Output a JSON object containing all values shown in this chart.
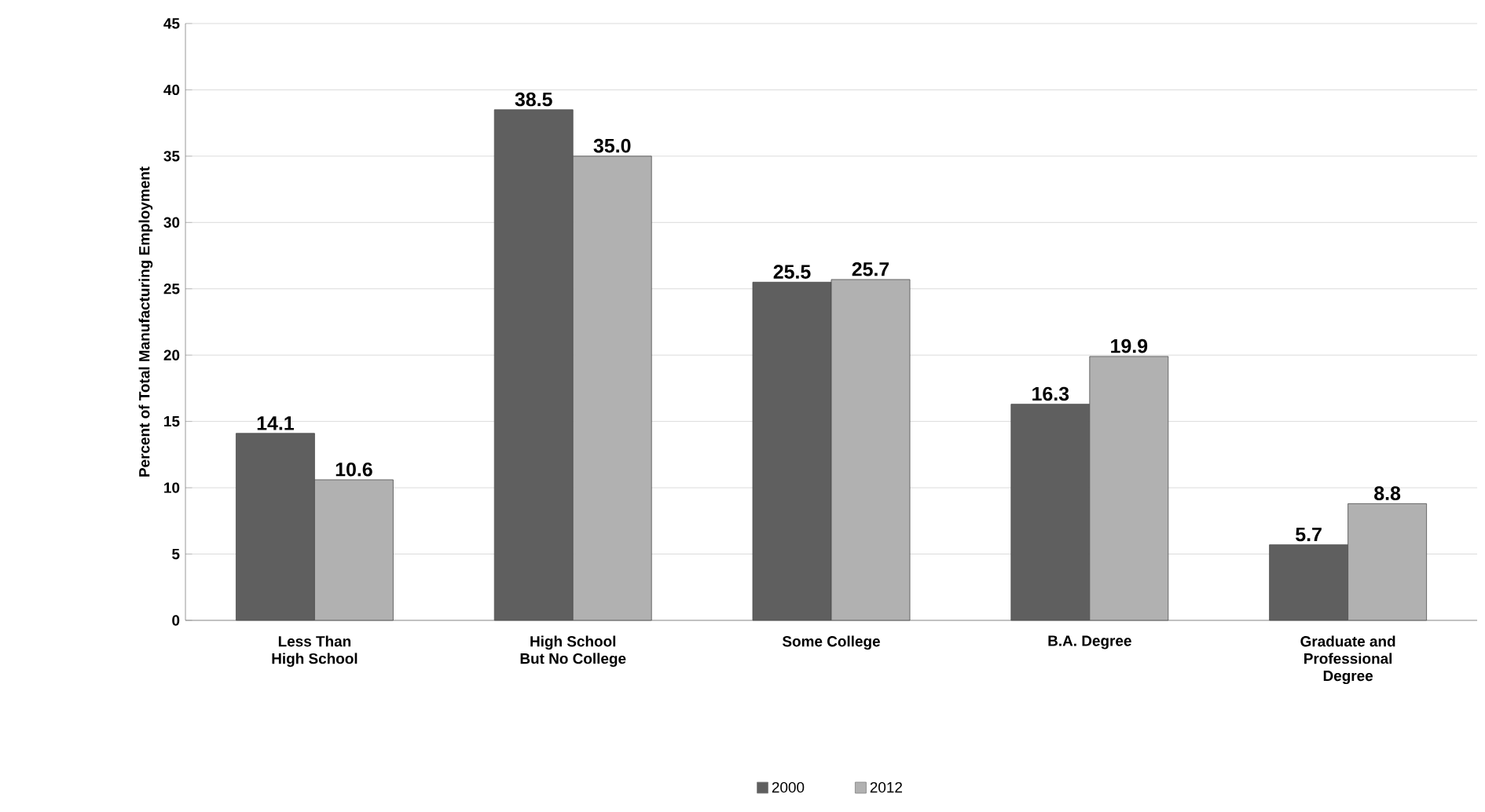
{
  "chart_data": {
    "type": "bar",
    "ylabel": "Percent of Total Manufacturing  Employment",
    "categories": [
      "Less Than High School",
      "High School But No College",
      "Some College",
      "B.A. Degree",
      "Graduate and Professional Degree"
    ],
    "series": [
      {
        "name": "2000",
        "color": "#5f5f5f",
        "values": [
          14.1,
          38.5,
          25.5,
          16.3,
          5.7
        ],
        "value_labels": [
          "14.1",
          "38.5",
          "25.5",
          "16.3",
          "5.7"
        ]
      },
      {
        "name": "2012",
        "color": "#b1b1b1",
        "values": [
          10.6,
          35.0,
          25.7,
          19.9,
          8.8
        ],
        "value_labels": [
          "10.6",
          "35.0",
          "25.7",
          "19.9",
          "8.8"
        ]
      }
    ],
    "ylim": [
      0,
      45
    ],
    "yticks": [
      0,
      5,
      10,
      15,
      20,
      25,
      30,
      35,
      40,
      45
    ],
    "grid": "y",
    "legend": "bottom"
  }
}
